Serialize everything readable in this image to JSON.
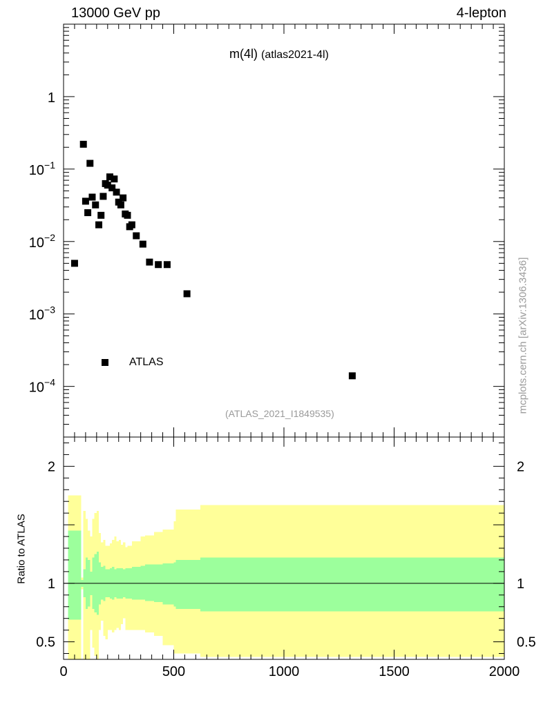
{
  "header": {
    "energy_label": "13000 GeV pp",
    "channel_label": "4-lepton"
  },
  "plot_title": {
    "main": "m(4l)",
    "sub": "(atlas2021-4l)"
  },
  "legend": {
    "label": "ATLAS"
  },
  "reference_id": "(ATLAS_2021_I1849535)",
  "watermark": "mcplots.cern.ch [arXiv:1306.3436]",
  "ratio_ylabel": "Ratio to ATLAS",
  "colors": {
    "inner_band": "#9cff9c",
    "outer_band": "#ffff99",
    "marker": "#000000",
    "frame": "#000000"
  },
  "chart_data": {
    "type": "scatter",
    "title": "m(4l) (atlas2021-4l)",
    "xlim": [
      0,
      2000
    ],
    "x_ticks": [
      "0",
      "500",
      "1000",
      "1500",
      "2000"
    ],
    "main": {
      "yscale": "log",
      "ylim": [
        2e-05,
        10
      ],
      "y_ticks": [
        "1",
        "10^-1",
        "10^-2",
        "10^-3",
        "10^-4"
      ],
      "series": [
        {
          "name": "ATLAS",
          "x": [
            50,
            90,
            100,
            110,
            120,
            130,
            145,
            160,
            170,
            180,
            190,
            200,
            210,
            220,
            230,
            240,
            250,
            260,
            270,
            280,
            290,
            300,
            310,
            330,
            360,
            390,
            430,
            470,
            560,
            1310
          ],
          "y": [
            0.005,
            0.22,
            0.036,
            0.025,
            0.12,
            0.041,
            0.032,
            0.017,
            0.023,
            0.042,
            0.063,
            0.06,
            0.078,
            0.055,
            0.073,
            0.048,
            0.035,
            0.032,
            0.04,
            0.024,
            0.023,
            0.016,
            0.017,
            0.012,
            0.0092,
            0.0052,
            0.0048,
            0.0048,
            0.0019,
            0.00014
          ]
        }
      ]
    },
    "ratio": {
      "ylabel": "Ratio to ATLAS",
      "ylim": [
        0.35,
        2.25
      ],
      "y_ticks": [
        "0.5",
        "1",
        "2"
      ],
      "reference_line": 1,
      "bins": [
        {
          "x0": 20,
          "x1": 80,
          "in_lo": 0.69,
          "in_hi": 1.45,
          "out_lo": 0.35,
          "out_hi": 1.75
        },
        {
          "x0": 80,
          "x1": 90,
          "in_lo": 0.97,
          "in_hi": 1.03,
          "out_lo": 0.95,
          "out_hi": 1.05
        },
        {
          "x0": 90,
          "x1": 100,
          "in_lo": 0.88,
          "in_hi": 1.12,
          "out_lo": 0.35,
          "out_hi": 1.62
        },
        {
          "x0": 100,
          "x1": 110,
          "in_lo": 0.78,
          "in_hi": 1.22,
          "out_lo": 0.35,
          "out_hi": 1.55
        },
        {
          "x0": 110,
          "x1": 120,
          "in_lo": 0.8,
          "in_hi": 1.2,
          "out_lo": 0.35,
          "out_hi": 1.45
        },
        {
          "x0": 120,
          "x1": 130,
          "in_lo": 0.9,
          "in_hi": 1.1,
          "out_lo": 0.6,
          "out_hi": 1.4
        },
        {
          "x0": 130,
          "x1": 140,
          "in_lo": 0.78,
          "in_hi": 1.22,
          "out_lo": 0.45,
          "out_hi": 1.55
        },
        {
          "x0": 140,
          "x1": 150,
          "in_lo": 0.75,
          "in_hi": 1.25,
          "out_lo": 0.38,
          "out_hi": 1.6
        },
        {
          "x0": 150,
          "x1": 160,
          "in_lo": 0.73,
          "in_hi": 1.27,
          "out_lo": 0.35,
          "out_hi": 1.62
        },
        {
          "x0": 160,
          "x1": 170,
          "in_lo": 0.82,
          "in_hi": 1.18,
          "out_lo": 0.6,
          "out_hi": 1.43
        },
        {
          "x0": 170,
          "x1": 180,
          "in_lo": 0.86,
          "in_hi": 1.14,
          "out_lo": 0.68,
          "out_hi": 1.35
        },
        {
          "x0": 180,
          "x1": 190,
          "in_lo": 0.85,
          "in_hi": 1.15,
          "out_lo": 0.55,
          "out_hi": 1.37
        },
        {
          "x0": 190,
          "x1": 200,
          "in_lo": 0.88,
          "in_hi": 1.12,
          "out_lo": 0.52,
          "out_hi": 1.32
        },
        {
          "x0": 200,
          "x1": 210,
          "in_lo": 0.88,
          "in_hi": 1.12,
          "out_lo": 0.6,
          "out_hi": 1.32
        },
        {
          "x0": 210,
          "x1": 220,
          "in_lo": 0.87,
          "in_hi": 1.13,
          "out_lo": 0.6,
          "out_hi": 1.34
        },
        {
          "x0": 220,
          "x1": 230,
          "in_lo": 0.86,
          "in_hi": 1.14,
          "out_lo": 0.58,
          "out_hi": 1.37
        },
        {
          "x0": 230,
          "x1": 240,
          "in_lo": 0.88,
          "in_hi": 1.12,
          "out_lo": 0.6,
          "out_hi": 1.4
        },
        {
          "x0": 240,
          "x1": 250,
          "in_lo": 0.87,
          "in_hi": 1.13,
          "out_lo": 0.62,
          "out_hi": 1.36
        },
        {
          "x0": 250,
          "x1": 260,
          "in_lo": 0.87,
          "in_hi": 1.13,
          "out_lo": 0.6,
          "out_hi": 1.37
        },
        {
          "x0": 260,
          "x1": 270,
          "in_lo": 0.87,
          "in_hi": 1.13,
          "out_lo": 0.65,
          "out_hi": 1.33
        },
        {
          "x0": 270,
          "x1": 280,
          "in_lo": 0.88,
          "in_hi": 1.12,
          "out_lo": 0.7,
          "out_hi": 1.35
        },
        {
          "x0": 280,
          "x1": 290,
          "in_lo": 0.87,
          "in_hi": 1.13,
          "out_lo": 0.6,
          "out_hi": 1.31
        },
        {
          "x0": 290,
          "x1": 310,
          "in_lo": 0.87,
          "in_hi": 1.13,
          "out_lo": 0.6,
          "out_hi": 1.32
        },
        {
          "x0": 310,
          "x1": 330,
          "in_lo": 0.86,
          "in_hi": 1.14,
          "out_lo": 0.6,
          "out_hi": 1.36
        },
        {
          "x0": 330,
          "x1": 350,
          "in_lo": 0.86,
          "in_hi": 1.14,
          "out_lo": 0.6,
          "out_hi": 1.36
        },
        {
          "x0": 350,
          "x1": 370,
          "in_lo": 0.86,
          "in_hi": 1.15,
          "out_lo": 0.6,
          "out_hi": 1.4
        },
        {
          "x0": 370,
          "x1": 410,
          "in_lo": 0.85,
          "in_hi": 1.16,
          "out_lo": 0.58,
          "out_hi": 1.41
        },
        {
          "x0": 410,
          "x1": 450,
          "in_lo": 0.84,
          "in_hi": 1.16,
          "out_lo": 0.55,
          "out_hi": 1.44
        },
        {
          "x0": 450,
          "x1": 500,
          "in_lo": 0.82,
          "in_hi": 1.17,
          "out_lo": 0.47,
          "out_hi": 1.46
        },
        {
          "x0": 500,
          "x1": 510,
          "in_lo": 0.8,
          "in_hi": 1.18,
          "out_lo": 0.4,
          "out_hi": 1.53
        },
        {
          "x0": 510,
          "x1": 620,
          "in_lo": 0.78,
          "in_hi": 1.2,
          "out_lo": 0.4,
          "out_hi": 1.63
        },
        {
          "x0": 620,
          "x1": 2000,
          "in_lo": 0.76,
          "in_hi": 1.22,
          "out_lo": 0.37,
          "out_hi": 1.67
        }
      ]
    }
  }
}
